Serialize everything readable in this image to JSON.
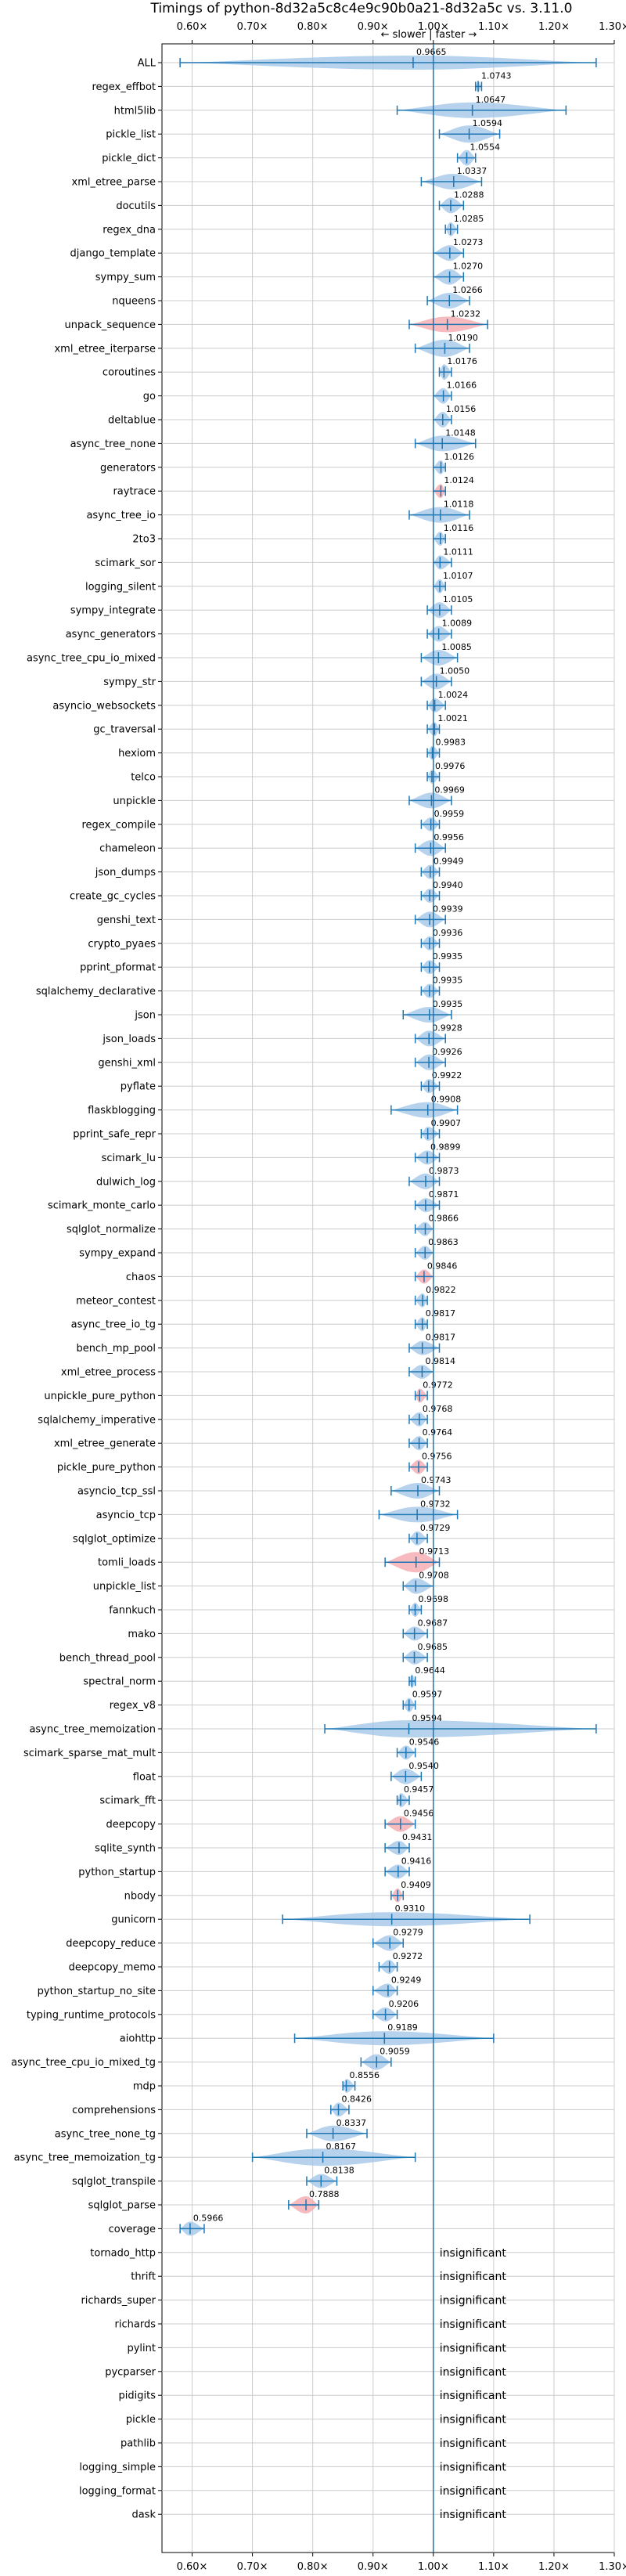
{
  "chart_data": {
    "type": "violin",
    "title": "Timings of python-8d32a5c8c4e9c90b0a21-8d32a5c vs. 3.11.0",
    "direction_label": "← slower | faster →",
    "xlim": [
      0.55,
      1.3
    ],
    "x_ticks": [
      0.6,
      0.7,
      0.8,
      0.9,
      1.0,
      1.1,
      1.2,
      1.3
    ],
    "x_tick_labels": [
      "0.60×",
      "0.70×",
      "0.80×",
      "0.90×",
      "1.00×",
      "1.10×",
      "1.20×",
      "1.30×"
    ],
    "grid": true,
    "reference_line": 1.0,
    "colors": {
      "violin": "#9ec3e6",
      "significant_slower": "#f4a3a8",
      "whisker": "#1f77b4",
      "reference": "#1f77b4",
      "grid": "#cccccc"
    },
    "insignificant_label": "insignificant",
    "benchmarks": [
      {
        "name": "ALL",
        "value": 0.9665,
        "label": "0.9665",
        "min": 0.58,
        "max": 1.27,
        "width": 0.5
      },
      {
        "name": "regex_effbot",
        "value": 1.0743,
        "label": "1.0743",
        "min": 1.07,
        "max": 1.08,
        "width": 0.3
      },
      {
        "name": "html5lib",
        "value": 1.0647,
        "label": "1.0647",
        "min": 0.94,
        "max": 1.22,
        "width": 0.6
      },
      {
        "name": "pickle_list",
        "value": 1.0594,
        "label": "1.0594",
        "min": 1.01,
        "max": 1.11,
        "width": 0.7
      },
      {
        "name": "pickle_dict",
        "value": 1.0554,
        "label": "1.0554",
        "min": 1.04,
        "max": 1.07,
        "width": 0.6
      },
      {
        "name": "xml_etree_parse",
        "value": 1.0337,
        "label": "1.0337",
        "min": 0.98,
        "max": 1.08,
        "width": 0.6
      },
      {
        "name": "docutils",
        "value": 1.0288,
        "label": "1.0288",
        "min": 1.01,
        "max": 1.05,
        "width": 0.6
      },
      {
        "name": "regex_dna",
        "value": 1.0285,
        "label": "1.0285",
        "min": 1.02,
        "max": 1.04,
        "width": 0.5
      },
      {
        "name": "django_template",
        "value": 1.0273,
        "label": "1.0273",
        "min": 1.0,
        "max": 1.05,
        "width": 0.6
      },
      {
        "name": "sympy_sum",
        "value": 1.027,
        "label": "1.0270",
        "min": 1.0,
        "max": 1.05,
        "width": 0.6
      },
      {
        "name": "nqueens",
        "value": 1.0266,
        "label": "1.0266",
        "min": 0.99,
        "max": 1.06,
        "width": 0.6
      },
      {
        "name": "unpack_sequence",
        "value": 1.0232,
        "label": "1.0232",
        "min": 0.96,
        "max": 1.09,
        "width": 0.6,
        "slower": true
      },
      {
        "name": "xml_etree_iterparse",
        "value": 1.019,
        "label": "1.0190",
        "min": 0.97,
        "max": 1.06,
        "width": 0.7
      },
      {
        "name": "coroutines",
        "value": 1.0176,
        "label": "1.0176",
        "min": 1.01,
        "max": 1.03,
        "width": 0.6
      },
      {
        "name": "go",
        "value": 1.0166,
        "label": "1.0166",
        "min": 1.0,
        "max": 1.03,
        "width": 0.6
      },
      {
        "name": "deltablue",
        "value": 1.0156,
        "label": "1.0156",
        "min": 1.0,
        "max": 1.03,
        "width": 0.6
      },
      {
        "name": "async_tree_none",
        "value": 1.0148,
        "label": "1.0148",
        "min": 0.97,
        "max": 1.07,
        "width": 0.6
      },
      {
        "name": "generators",
        "value": 1.0126,
        "label": "1.0126",
        "min": 1.0,
        "max": 1.02,
        "width": 0.5
      },
      {
        "name": "raytrace",
        "value": 1.0124,
        "label": "1.0124",
        "min": 1.0,
        "max": 1.02,
        "width": 0.5,
        "slower": true
      },
      {
        "name": "async_tree_io",
        "value": 1.0118,
        "label": "1.0118",
        "min": 0.96,
        "max": 1.06,
        "width": 0.6
      },
      {
        "name": "2to3",
        "value": 1.0116,
        "label": "1.0116",
        "min": 1.0,
        "max": 1.02,
        "width": 0.5
      },
      {
        "name": "scimark_sor",
        "value": 1.0111,
        "label": "1.0111",
        "min": 1.0,
        "max": 1.03,
        "width": 0.5
      },
      {
        "name": "logging_silent",
        "value": 1.0107,
        "label": "1.0107",
        "min": 1.0,
        "max": 1.02,
        "width": 0.5
      },
      {
        "name": "sympy_integrate",
        "value": 1.0105,
        "label": "1.0105",
        "min": 0.99,
        "max": 1.03,
        "width": 0.6
      },
      {
        "name": "async_generators",
        "value": 1.0089,
        "label": "1.0089",
        "min": 0.99,
        "max": 1.03,
        "width": 0.6
      },
      {
        "name": "async_tree_cpu_io_mixed",
        "value": 1.0085,
        "label": "1.0085",
        "min": 0.98,
        "max": 1.04,
        "width": 0.6
      },
      {
        "name": "sympy_str",
        "value": 1.005,
        "label": "1.0050",
        "min": 0.98,
        "max": 1.03,
        "width": 0.6
      },
      {
        "name": "asyncio_websockets",
        "value": 1.0024,
        "label": "1.0024",
        "min": 0.99,
        "max": 1.02,
        "width": 0.5
      },
      {
        "name": "gc_traversal",
        "value": 1.0021,
        "label": "1.0021",
        "min": 0.99,
        "max": 1.01,
        "width": 0.5
      },
      {
        "name": "hexiom",
        "value": 0.9983,
        "label": "0.9983",
        "min": 0.99,
        "max": 1.01,
        "width": 0.5
      },
      {
        "name": "telco",
        "value": 0.9976,
        "label": "0.9976",
        "min": 0.99,
        "max": 1.01,
        "width": 0.5
      },
      {
        "name": "unpickle",
        "value": 0.9969,
        "label": "0.9969",
        "min": 0.96,
        "max": 1.03,
        "width": 0.6
      },
      {
        "name": "regex_compile",
        "value": 0.9959,
        "label": "0.9959",
        "min": 0.98,
        "max": 1.01,
        "width": 0.5
      },
      {
        "name": "chameleon",
        "value": 0.9956,
        "label": "0.9956",
        "min": 0.97,
        "max": 1.02,
        "width": 0.6
      },
      {
        "name": "json_dumps",
        "value": 0.9949,
        "label": "0.9949",
        "min": 0.98,
        "max": 1.01,
        "width": 0.5
      },
      {
        "name": "create_gc_cycles",
        "value": 0.994,
        "label": "0.9940",
        "min": 0.98,
        "max": 1.01,
        "width": 0.5
      },
      {
        "name": "genshi_text",
        "value": 0.9939,
        "label": "0.9939",
        "min": 0.97,
        "max": 1.02,
        "width": 0.6
      },
      {
        "name": "crypto_pyaes",
        "value": 0.9936,
        "label": "0.9936",
        "min": 0.98,
        "max": 1.01,
        "width": 0.5
      },
      {
        "name": "pprint_pformat",
        "value": 0.9935,
        "label": "0.9935",
        "min": 0.98,
        "max": 1.01,
        "width": 0.5
      },
      {
        "name": "sqlalchemy_declarative",
        "value": 0.9935,
        "label": "0.9935",
        "min": 0.98,
        "max": 1.01,
        "width": 0.5
      },
      {
        "name": "json",
        "value": 0.9935,
        "label": "0.9935",
        "min": 0.95,
        "max": 1.03,
        "width": 0.6
      },
      {
        "name": "json_loads",
        "value": 0.9928,
        "label": "0.9928",
        "min": 0.97,
        "max": 1.02,
        "width": 0.6
      },
      {
        "name": "genshi_xml",
        "value": 0.9926,
        "label": "0.9926",
        "min": 0.97,
        "max": 1.02,
        "width": 0.6
      },
      {
        "name": "pyflate",
        "value": 0.9922,
        "label": "0.9922",
        "min": 0.98,
        "max": 1.01,
        "width": 0.5
      },
      {
        "name": "flaskblogging",
        "value": 0.9908,
        "label": "0.9908",
        "min": 0.93,
        "max": 1.04,
        "width": 0.6
      },
      {
        "name": "pprint_safe_repr",
        "value": 0.9907,
        "label": "0.9907",
        "min": 0.98,
        "max": 1.01,
        "width": 0.5
      },
      {
        "name": "scimark_lu",
        "value": 0.9899,
        "label": "0.9899",
        "min": 0.97,
        "max": 1.01,
        "width": 0.5
      },
      {
        "name": "dulwich_log",
        "value": 0.9873,
        "label": "0.9873",
        "min": 0.96,
        "max": 1.01,
        "width": 0.6
      },
      {
        "name": "scimark_monte_carlo",
        "value": 0.9871,
        "label": "0.9871",
        "min": 0.97,
        "max": 1.01,
        "width": 0.5
      },
      {
        "name": "sqlglot_normalize",
        "value": 0.9866,
        "label": "0.9866",
        "min": 0.97,
        "max": 1.0,
        "width": 0.5
      },
      {
        "name": "sympy_expand",
        "value": 0.9863,
        "label": "0.9863",
        "min": 0.97,
        "max": 1.0,
        "width": 0.5
      },
      {
        "name": "chaos",
        "value": 0.9846,
        "label": "0.9846",
        "min": 0.97,
        "max": 1.0,
        "width": 0.5,
        "slower": true
      },
      {
        "name": "meteor_contest",
        "value": 0.9822,
        "label": "0.9822",
        "min": 0.97,
        "max": 0.99,
        "width": 0.5
      },
      {
        "name": "async_tree_io_tg",
        "value": 0.9817,
        "label": "0.9817",
        "min": 0.97,
        "max": 0.99,
        "width": 0.5
      },
      {
        "name": "bench_mp_pool",
        "value": 0.9817,
        "label": "0.9817",
        "min": 0.96,
        "max": 1.01,
        "width": 0.5
      },
      {
        "name": "xml_etree_process",
        "value": 0.9814,
        "label": "0.9814",
        "min": 0.96,
        "max": 1.0,
        "width": 0.5
      },
      {
        "name": "unpickle_pure_python",
        "value": 0.9772,
        "label": "0.9772",
        "min": 0.97,
        "max": 0.99,
        "width": 0.5,
        "slower": true
      },
      {
        "name": "sqlalchemy_imperative",
        "value": 0.9768,
        "label": "0.9768",
        "min": 0.96,
        "max": 0.99,
        "width": 0.5
      },
      {
        "name": "xml_etree_generate",
        "value": 0.9764,
        "label": "0.9764",
        "min": 0.96,
        "max": 0.99,
        "width": 0.5
      },
      {
        "name": "pickle_pure_python",
        "value": 0.9756,
        "label": "0.9756",
        "min": 0.96,
        "max": 0.99,
        "width": 0.5,
        "slower": true
      },
      {
        "name": "asyncio_tcp_ssl",
        "value": 0.9743,
        "label": "0.9743",
        "min": 0.93,
        "max": 1.01,
        "width": 0.6
      },
      {
        "name": "asyncio_tcp",
        "value": 0.9732,
        "label": "0.9732",
        "min": 0.91,
        "max": 1.04,
        "width": 0.6
      },
      {
        "name": "sqlglot_optimize",
        "value": 0.9729,
        "label": "0.9729",
        "min": 0.96,
        "max": 0.99,
        "width": 0.5
      },
      {
        "name": "tomli_loads",
        "value": 0.9713,
        "label": "0.9713",
        "min": 0.92,
        "max": 1.01,
        "width": 0.9,
        "slower": true
      },
      {
        "name": "unpickle_list",
        "value": 0.9708,
        "label": "0.9708",
        "min": 0.95,
        "max": 1.0,
        "width": 0.6
      },
      {
        "name": "fannkuch",
        "value": 0.9698,
        "label": "0.9698",
        "min": 0.96,
        "max": 0.98,
        "width": 0.5
      },
      {
        "name": "mako",
        "value": 0.9687,
        "label": "0.9687",
        "min": 0.95,
        "max": 0.99,
        "width": 0.5
      },
      {
        "name": "bench_thread_pool",
        "value": 0.9685,
        "label": "0.9685",
        "min": 0.95,
        "max": 0.99,
        "width": 0.5
      },
      {
        "name": "spectral_norm",
        "value": 0.9644,
        "label": "0.9644",
        "min": 0.96,
        "max": 0.97,
        "width": 0.5
      },
      {
        "name": "regex_v8",
        "value": 0.9597,
        "label": "0.9597",
        "min": 0.95,
        "max": 0.97,
        "width": 0.5
      },
      {
        "name": "async_tree_memoization",
        "value": 0.9594,
        "label": "0.9594",
        "min": 0.82,
        "max": 1.27,
        "width": 0.7
      },
      {
        "name": "scimark_sparse_mat_mult",
        "value": 0.9546,
        "label": "0.9546",
        "min": 0.94,
        "max": 0.97,
        "width": 0.5
      },
      {
        "name": "float",
        "value": 0.954,
        "label": "0.9540",
        "min": 0.93,
        "max": 0.98,
        "width": 0.6
      },
      {
        "name": "scimark_fft",
        "value": 0.9457,
        "label": "0.9457",
        "min": 0.94,
        "max": 0.96,
        "width": 0.5
      },
      {
        "name": "deepcopy",
        "value": 0.9456,
        "label": "0.9456",
        "min": 0.92,
        "max": 0.97,
        "width": 0.6,
        "slower": true
      },
      {
        "name": "sqlite_synth",
        "value": 0.9431,
        "label": "0.9431",
        "min": 0.92,
        "max": 0.96,
        "width": 0.5
      },
      {
        "name": "python_startup",
        "value": 0.9416,
        "label": "0.9416",
        "min": 0.92,
        "max": 0.96,
        "width": 0.5
      },
      {
        "name": "nbody",
        "value": 0.9409,
        "label": "0.9409",
        "min": 0.93,
        "max": 0.95,
        "width": 0.5,
        "slower": true
      },
      {
        "name": "gunicorn",
        "value": 0.931,
        "label": "0.9310",
        "min": 0.75,
        "max": 1.16,
        "width": 0.5
      },
      {
        "name": "deepcopy_reduce",
        "value": 0.9279,
        "label": "0.9279",
        "min": 0.9,
        "max": 0.95,
        "width": 0.6
      },
      {
        "name": "deepcopy_memo",
        "value": 0.9272,
        "label": "0.9272",
        "min": 0.91,
        "max": 0.94,
        "width": 0.5
      },
      {
        "name": "python_startup_no_site",
        "value": 0.9249,
        "label": "0.9249",
        "min": 0.9,
        "max": 0.94,
        "width": 0.5
      },
      {
        "name": "typing_runtime_protocols",
        "value": 0.9206,
        "label": "0.9206",
        "min": 0.9,
        "max": 0.94,
        "width": 0.5
      },
      {
        "name": "aiohttp",
        "value": 0.9189,
        "label": "0.9189",
        "min": 0.77,
        "max": 1.1,
        "width": 0.5
      },
      {
        "name": "async_tree_cpu_io_mixed_tg",
        "value": 0.9059,
        "label": "0.9059",
        "min": 0.88,
        "max": 0.93,
        "width": 0.6
      },
      {
        "name": "mdp",
        "value": 0.8556,
        "label": "0.8556",
        "min": 0.85,
        "max": 0.87,
        "width": 0.5
      },
      {
        "name": "comprehensions",
        "value": 0.8426,
        "label": "0.8426",
        "min": 0.83,
        "max": 0.86,
        "width": 0.5
      },
      {
        "name": "async_tree_none_tg",
        "value": 0.8337,
        "label": "0.8337",
        "min": 0.79,
        "max": 0.89,
        "width": 0.6
      },
      {
        "name": "async_tree_memoization_tg",
        "value": 0.8167,
        "label": "0.8167",
        "min": 0.7,
        "max": 0.97,
        "width": 0.7
      },
      {
        "name": "sqlglot_transpile",
        "value": 0.8138,
        "label": "0.8138",
        "min": 0.79,
        "max": 0.84,
        "width": 0.5
      },
      {
        "name": "sqlglot_parse",
        "value": 0.7888,
        "label": "0.7888",
        "min": 0.76,
        "max": 0.81,
        "width": 0.7,
        "slower": true
      },
      {
        "name": "coverage",
        "value": 0.5966,
        "label": "0.5966",
        "min": 0.58,
        "max": 0.62,
        "width": 0.5
      },
      {
        "name": "tornado_http",
        "insignificant": true
      },
      {
        "name": "thrift",
        "insignificant": true
      },
      {
        "name": "richards_super",
        "insignificant": true
      },
      {
        "name": "richards",
        "insignificant": true
      },
      {
        "name": "pylint",
        "insignificant": true
      },
      {
        "name": "pycparser",
        "insignificant": true
      },
      {
        "name": "pidigits",
        "insignificant": true
      },
      {
        "name": "pickle",
        "insignificant": true
      },
      {
        "name": "pathlib",
        "insignificant": true
      },
      {
        "name": "logging_simple",
        "insignificant": true
      },
      {
        "name": "logging_format",
        "insignificant": true
      },
      {
        "name": "dask",
        "insignificant": true
      }
    ]
  }
}
